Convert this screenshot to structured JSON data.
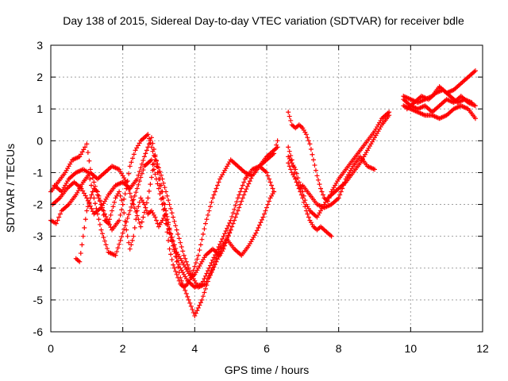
{
  "chart_data": {
    "type": "scatter",
    "title": "Day 138 of 2015, Sidereal Day-to-day VTEC variation (SDTVAR) for receiver bdle",
    "xlabel": "GPS time / hours",
    "ylabel": "SDTVAR / TECUs",
    "xlim": [
      0,
      12
    ],
    "ylim": [
      -6,
      3
    ],
    "xticks": [
      "0",
      "2",
      "4",
      "6",
      "8",
      "10",
      "12"
    ],
    "yticks": [
      "-6",
      "-5",
      "-4",
      "-3",
      "-2",
      "-1",
      "0",
      "1",
      "2",
      "3"
    ],
    "grid": true,
    "marker": "plus",
    "color": "#ff0000",
    "series": [
      {
        "x": [
          0.0,
          0.2,
          0.4,
          0.6,
          0.8,
          0.95,
          1.0,
          1.1,
          1.3,
          1.5,
          1.7,
          1.9,
          2.0,
          2.1,
          2.2,
          2.35,
          2.5,
          2.7,
          2.9,
          3.1,
          3.3,
          3.5,
          3.7,
          3.9,
          4.1,
          4.3,
          4.5,
          4.7,
          4.9,
          5.0,
          5.2,
          5.4,
          5.6,
          5.8,
          6.0,
          6.2,
          6.3
        ],
        "y": [
          -1.6,
          -1.3,
          -1.0,
          -0.6,
          -0.5,
          -0.2,
          -0.1,
          -0.9,
          -1.7,
          -2.3,
          -2.8,
          -2.5,
          -2.0,
          -1.5,
          -0.8,
          -0.3,
          0.0,
          0.2,
          -0.6,
          -1.8,
          -2.8,
          -3.5,
          -3.9,
          -4.3,
          -3.6,
          -2.6,
          -1.8,
          -1.2,
          -0.8,
          -0.6,
          -0.8,
          -1.0,
          -1.1,
          -0.8,
          -0.5,
          -0.3,
          -0.2
        ]
      },
      {
        "x": [
          0.1,
          0.3,
          0.5,
          0.7,
          0.9,
          1.05,
          1.2,
          1.4,
          1.6,
          1.8,
          2.0,
          2.2,
          2.4,
          2.6,
          2.8,
          3.0,
          3.2,
          3.4,
          3.6,
          3.8,
          4.0,
          4.2,
          4.4,
          4.6,
          4.8,
          5.0,
          5.2,
          5.4,
          5.6,
          5.8,
          6.0,
          6.2
        ],
        "y": [
          -1.4,
          -1.6,
          -1.2,
          -1.0,
          -0.9,
          -1.0,
          -1.8,
          -2.8,
          -3.5,
          -3.6,
          -2.9,
          -2.2,
          -1.5,
          -0.8,
          -0.6,
          -1.5,
          -2.5,
          -3.3,
          -4.0,
          -4.4,
          -4.6,
          -4.5,
          -4.0,
          -3.5,
          -3.0,
          -2.5,
          -1.8,
          -1.2,
          -0.9,
          -0.8,
          -1.0,
          -1.6
        ]
      },
      {
        "x": [
          0.05,
          0.25,
          0.45,
          0.65,
          0.85,
          1.0,
          1.2,
          1.4,
          1.6,
          1.8,
          2.0,
          2.2,
          2.4,
          2.6,
          2.8,
          3.0,
          3.2,
          3.4,
          3.6,
          3.8,
          4.0,
          4.2,
          4.4,
          4.6,
          4.8,
          5.0
        ],
        "y": [
          -2.0,
          -1.8,
          -1.5,
          -1.3,
          -1.5,
          -1.8,
          -2.3,
          -2.1,
          -1.7,
          -1.4,
          -1.3,
          -1.5,
          -1.2,
          -0.5,
          0.1,
          -1.0,
          -2.2,
          -3.3,
          -4.3,
          -4.9,
          -5.5,
          -5.0,
          -4.3,
          -3.8,
          -3.3,
          -2.8
        ]
      },
      {
        "x": [
          0.0,
          0.15,
          0.3,
          0.5,
          0.7,
          0.9,
          1.1,
          1.3,
          1.5,
          1.7,
          1.9,
          2.1,
          2.3,
          2.5,
          2.7,
          2.9,
          3.1,
          3.3,
          3.5,
          3.7,
          3.9,
          4.1,
          4.3,
          4.5,
          4.7,
          4.9,
          5.1,
          5.3,
          5.5,
          5.7,
          5.9,
          6.1,
          6.2
        ],
        "y": [
          -2.5,
          -2.6,
          -2.2,
          -2.0,
          -1.7,
          -1.3,
          -1.0,
          -1.2,
          -1.0,
          -0.8,
          -0.9,
          -1.3,
          -2.0,
          -2.7,
          -1.8,
          -0.5,
          -1.2,
          -2.0,
          -2.8,
          -3.6,
          -4.2,
          -4.6,
          -4.5,
          -4.0,
          -3.4,
          -3.1,
          -3.4,
          -3.6,
          -3.3,
          -2.9,
          -2.4,
          -1.8,
          -1.6
        ]
      },
      {
        "x": [
          0.7,
          0.8,
          0.9,
          1.0,
          1.1,
          1.2,
          1.3,
          1.4,
          1.5,
          1.6,
          1.7,
          1.8,
          1.9,
          2.0,
          2.1,
          2.2,
          2.3,
          2.4,
          2.5,
          2.6,
          2.7,
          2.8,
          2.9,
          3.0,
          3.1,
          3.2
        ],
        "y": [
          -3.7,
          -3.8,
          -3.0,
          -2.2,
          -1.8,
          -1.5,
          -1.6,
          -2.0,
          -2.5,
          -2.6,
          -2.2,
          -1.8,
          -1.6,
          -2.0,
          -2.8,
          -3.4,
          -3.0,
          -2.2,
          -1.8,
          -2.0,
          -2.3,
          -2.2,
          -2.4,
          -2.7,
          -2.5,
          -2.3
        ]
      },
      {
        "x": [
          3.2,
          3.3,
          3.4,
          3.5,
          3.6,
          3.7,
          3.8,
          3.9,
          4.0,
          4.1,
          4.2,
          4.3,
          4.4,
          4.5,
          4.6,
          4.7,
          4.8,
          4.9,
          5.0,
          5.2,
          5.4,
          5.6,
          5.8,
          6.0,
          6.2,
          6.3
        ],
        "y": [
          -2.6,
          -3.4,
          -3.9,
          -4.2,
          -4.5,
          -4.6,
          -4.5,
          -4.3,
          -4.2,
          -4.0,
          -3.8,
          -3.6,
          -3.5,
          -3.4,
          -3.5,
          -3.6,
          -3.4,
          -3.1,
          -2.8,
          -2.2,
          -1.6,
          -1.1,
          -0.8,
          -0.6,
          -0.4,
          0.0
        ]
      },
      {
        "x": [
          6.6,
          6.7,
          6.8,
          6.9,
          7.0,
          7.1,
          7.2,
          7.3,
          7.4,
          7.5,
          7.6,
          7.7,
          7.8,
          7.9,
          8.0,
          8.2,
          8.4,
          8.6,
          8.8,
          9.0,
          9.2,
          9.4
        ],
        "y": [
          0.9,
          0.5,
          0.4,
          0.5,
          0.4,
          0.2,
          -0.1,
          -0.6,
          -1.1,
          -1.5,
          -1.8,
          -1.9,
          -1.6,
          -1.4,
          -1.2,
          -0.9,
          -0.6,
          -0.3,
          0.0,
          0.3,
          0.7,
          0.9
        ]
      },
      {
        "x": [
          6.6,
          6.7,
          6.8,
          6.9,
          7.0,
          7.1,
          7.2,
          7.3,
          7.4,
          7.5,
          7.6,
          7.7,
          7.8
        ],
        "y": [
          -0.2,
          -0.6,
          -1.2,
          -1.5,
          -1.8,
          -2.2,
          -2.5,
          -2.7,
          -2.8,
          -2.7,
          -2.8,
          -2.9,
          -3.0
        ]
      },
      {
        "x": [
          6.6,
          6.7,
          6.8,
          6.9,
          7.0,
          7.1,
          7.2,
          7.3,
          7.4,
          7.5,
          7.6,
          7.7,
          7.8,
          7.9,
          8.0,
          8.2,
          8.4,
          8.6,
          8.8,
          9.0,
          9.2,
          9.4
        ],
        "y": [
          -0.5,
          -0.7,
          -0.9,
          -1.3,
          -1.6,
          -2.0,
          -2.2,
          -2.3,
          -2.4,
          -2.2,
          -2.0,
          -1.8,
          -1.7,
          -1.6,
          -1.5,
          -1.3,
          -1.0,
          -0.7,
          -0.3,
          0.1,
          0.5,
          0.8
        ]
      },
      {
        "x": [
          6.6,
          6.7,
          6.8,
          6.9,
          7.0,
          7.2,
          7.4,
          7.6,
          7.8,
          8.0,
          8.2,
          8.4,
          8.6,
          8.8,
          9.0
        ],
        "y": [
          -0.7,
          -1.0,
          -1.2,
          -1.5,
          -1.4,
          -1.7,
          -2.0,
          -2.1,
          -2.0,
          -1.8,
          -1.2,
          -0.8,
          -0.5,
          -0.8,
          -0.9
        ]
      },
      {
        "x": [
          9.8,
          10.0,
          10.2,
          10.4,
          10.6,
          10.8,
          11.0,
          11.2,
          11.4,
          11.6,
          11.8
        ],
        "y": [
          1.4,
          1.3,
          1.2,
          1.3,
          1.4,
          1.7,
          1.5,
          1.6,
          1.8,
          2.0,
          2.2
        ]
      },
      {
        "x": [
          9.8,
          10.0,
          10.2,
          10.4,
          10.6,
          10.8,
          11.0,
          11.2,
          11.4,
          11.6,
          11.8
        ],
        "y": [
          1.3,
          1.1,
          1.0,
          1.1,
          0.9,
          1.1,
          1.3,
          1.2,
          1.4,
          1.2,
          1.1
        ]
      },
      {
        "x": [
          9.8,
          10.0,
          10.2,
          10.4,
          10.6,
          10.8,
          11.0,
          11.2,
          11.4,
          11.6,
          11.8
        ],
        "y": [
          1.1,
          1.0,
          0.9,
          0.8,
          0.8,
          0.7,
          0.8,
          1.0,
          1.1,
          1.0,
          0.7
        ]
      },
      {
        "x": [
          9.9,
          10.1,
          10.3,
          10.5,
          10.7,
          10.9,
          11.1,
          11.3,
          11.5,
          11.7
        ],
        "y": [
          1.0,
          1.2,
          1.4,
          1.3,
          1.5,
          1.6,
          1.4,
          1.2,
          1.3,
          1.2
        ]
      }
    ]
  }
}
